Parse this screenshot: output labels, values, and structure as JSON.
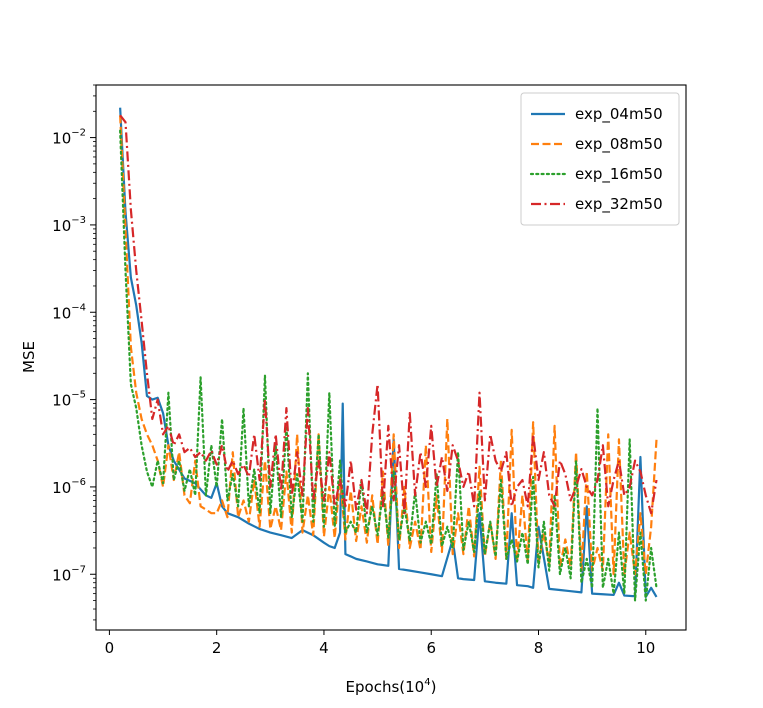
{
  "chart_data": {
    "type": "line",
    "title": "",
    "xlabel": "Epochs(10",
    "xlabel_superscript": "4",
    "xlabel_suffix": ")",
    "ylabel": "MSE",
    "yscale": "log",
    "xlim": [
      -0.25,
      10.75
    ],
    "ylim": [
      2.3e-08,
      0.04
    ],
    "x_ticks": [
      0,
      2,
      4,
      6,
      8,
      10
    ],
    "x_tick_labels": [
      "0",
      "2",
      "4",
      "6",
      "8",
      "10"
    ],
    "y_ticks": [
      1e-07,
      1e-06,
      1e-05,
      0.0001,
      0.001,
      0.01
    ],
    "y_tick_labels": [
      {
        "base": "10",
        "exp": "−7"
      },
      {
        "base": "10",
        "exp": "−6"
      },
      {
        "base": "10",
        "exp": "−5"
      },
      {
        "base": "10",
        "exp": "−4"
      },
      {
        "base": "10",
        "exp": "−3"
      },
      {
        "base": "10",
        "exp": "−2"
      }
    ],
    "grid": false,
    "legend_position": "top-right",
    "series": [
      {
        "name": "exp_04m50",
        "color": "#1f77b4",
        "dash": "solid",
        "x": [
          0.2,
          0.3,
          0.4,
          0.5,
          0.6,
          0.7,
          0.8,
          0.9,
          1.0,
          1.1,
          1.2,
          1.4,
          1.6,
          1.8,
          1.9,
          2.0,
          2.1,
          2.2,
          2.4,
          2.6,
          2.8,
          3.0,
          3.2,
          3.4,
          3.6,
          3.8,
          4.0,
          4.1,
          4.2,
          4.3,
          4.35,
          4.4,
          4.5,
          4.6,
          4.8,
          5.0,
          5.2,
          5.3,
          5.4,
          5.6,
          5.8,
          6.0,
          6.2,
          6.4,
          6.5,
          6.6,
          6.8,
          6.9,
          7.0,
          7.2,
          7.4,
          7.5,
          7.6,
          7.8,
          7.9,
          8.0,
          8.2,
          8.4,
          8.6,
          8.8,
          8.9,
          9.0,
          9.2,
          9.4,
          9.5,
          9.6,
          9.8,
          9.9,
          10.0,
          10.1,
          10.2
        ],
        "y": [
          0.022,
          0.0014,
          0.00025,
          0.00012,
          4.5e-05,
          1.1e-05,
          1e-05,
          1.05e-05,
          7e-06,
          3e-06,
          2e-06,
          1.25e-06,
          1.1e-06,
          8e-07,
          7.5e-07,
          1.1e-06,
          6e-07,
          5e-07,
          4.5e-07,
          3.8e-07,
          3.3e-07,
          3e-07,
          2.8e-07,
          2.6e-07,
          3.2e-07,
          2.8e-07,
          2.3e-07,
          2.1e-07,
          2e-07,
          3e-07,
          9e-06,
          1.7e-07,
          1.6e-07,
          1.5e-07,
          1.4e-07,
          1.3e-07,
          1.25e-07,
          3.5e-06,
          1.15e-07,
          1.1e-07,
          1.05e-07,
          1e-07,
          9.5e-08,
          2.5e-07,
          9e-08,
          8.8e-08,
          8.6e-08,
          5e-07,
          8.3e-08,
          8e-08,
          7.8e-08,
          5e-07,
          7.5e-08,
          7.3e-08,
          7e-08,
          3.5e-07,
          6.8e-08,
          6.6e-08,
          6.4e-08,
          6.2e-08,
          6e-07,
          6e-08,
          5.9e-08,
          5.8e-08,
          8e-08,
          5.7e-08,
          5.6e-08,
          2.2e-06,
          5.5e-08,
          7e-08,
          5.5e-08
        ]
      },
      {
        "name": "exp_08m50",
        "color": "#ff7f0e",
        "dash": "dashed",
        "x": [
          0.2,
          0.3,
          0.4,
          0.5,
          0.6,
          0.7,
          0.8,
          0.9,
          1.0,
          1.1,
          1.2,
          1.3,
          1.4,
          1.5,
          1.6,
          1.7,
          1.8,
          1.9,
          2.0,
          2.1,
          2.2,
          2.3,
          2.4,
          2.5,
          2.6,
          2.7,
          2.8,
          2.9,
          3.0,
          3.1,
          3.2,
          3.3,
          3.4,
          3.5,
          3.6,
          3.7,
          3.8,
          3.9,
          4.0,
          4.1,
          4.2,
          4.3,
          4.4,
          4.5,
          4.6,
          4.7,
          4.8,
          4.9,
          5.0,
          5.1,
          5.2,
          5.3,
          5.4,
          5.5,
          5.6,
          5.7,
          5.8,
          5.9,
          6.0,
          6.1,
          6.2,
          6.3,
          6.4,
          6.5,
          6.6,
          6.7,
          6.8,
          6.9,
          7.0,
          7.1,
          7.2,
          7.3,
          7.4,
          7.5,
          7.6,
          7.7,
          7.8,
          7.9,
          8.0,
          8.1,
          8.2,
          8.3,
          8.4,
          8.5,
          8.6,
          8.7,
          8.8,
          8.9,
          9.0,
          9.1,
          9.2,
          9.3,
          9.4,
          9.5,
          9.6,
          9.7,
          9.8,
          9.9,
          10.0,
          10.1,
          10.2
        ],
        "y": [
          0.018,
          0.0009,
          4e-05,
          1.2e-05,
          6e-06,
          4e-06,
          3e-06,
          2e-06,
          1e-06,
          3e-06,
          1.2e-06,
          2.5e-06,
          8e-07,
          6.5e-07,
          2e-06,
          6e-07,
          5.5e-07,
          5e-07,
          5e-07,
          7e-07,
          4.5e-07,
          2.5e-06,
          4.5e-07,
          7e-07,
          4e-07,
          1.2e-06,
          3.5e-07,
          2e-06,
          3.3e-07,
          6e-07,
          3.2e-07,
          1.5e-06,
          3e-07,
          4e-06,
          3e-07,
          8e-07,
          2.8e-07,
          4e-06,
          2.7e-07,
          1e-06,
          2.6e-07,
          1.3e-06,
          2.5e-07,
          9e-07,
          2.4e-07,
          6e-07,
          2.3e-07,
          8e-07,
          2.2e-07,
          1.5e-06,
          2.1e-07,
          4e-06,
          2e-07,
          1e-06,
          2e-07,
          4e-07,
          1.9e-07,
          3e-06,
          1.8e-07,
          8e-07,
          1.8e-07,
          6e-06,
          1.7e-07,
          5e-07,
          1.7e-07,
          6e-07,
          1.6e-07,
          1.7e-06,
          1.6e-07,
          4e-07,
          1.5e-07,
          2e-06,
          1.5e-07,
          4.5e-06,
          1.4e-07,
          8e-07,
          1.4e-07,
          5.5e-06,
          1.3e-07,
          3e-07,
          1.3e-07,
          5e-06,
          1.2e-07,
          2.5e-07,
          1.2e-07,
          2.5e-06,
          1.1e-07,
          1.5e-06,
          1.1e-07,
          2e-07,
          1.1e-07,
          4e-06,
          1e-07,
          3.5e-06,
          1e-07,
          3e-07,
          1e-07,
          5e-07,
          1e-07,
          3.5e-07,
          3.5e-06
        ]
      },
      {
        "name": "exp_16m50",
        "color": "#2ca02c",
        "dash": "dotted",
        "x": [
          0.2,
          0.3,
          0.4,
          0.5,
          0.6,
          0.7,
          0.8,
          0.9,
          1.0,
          1.1,
          1.2,
          1.3,
          1.4,
          1.5,
          1.6,
          1.7,
          1.8,
          1.9,
          2.0,
          2.1,
          2.2,
          2.3,
          2.4,
          2.5,
          2.6,
          2.7,
          2.8,
          2.9,
          3.0,
          3.1,
          3.2,
          3.3,
          3.4,
          3.5,
          3.6,
          3.7,
          3.8,
          3.9,
          4.0,
          4.1,
          4.2,
          4.3,
          4.4,
          4.5,
          4.6,
          4.7,
          4.8,
          4.9,
          5.0,
          5.1,
          5.2,
          5.3,
          5.4,
          5.5,
          5.6,
          5.7,
          5.8,
          5.9,
          6.0,
          6.1,
          6.2,
          6.3,
          6.4,
          6.5,
          6.6,
          6.7,
          6.8,
          6.9,
          7.0,
          7.1,
          7.2,
          7.3,
          7.4,
          7.5,
          7.6,
          7.7,
          7.8,
          7.9,
          8.0,
          8.1,
          8.2,
          8.3,
          8.4,
          8.5,
          8.6,
          8.7,
          8.8,
          8.9,
          9.0,
          9.1,
          9.2,
          9.3,
          9.4,
          9.5,
          9.6,
          9.7,
          9.8,
          9.9,
          10.0,
          10.1,
          10.2
        ],
        "y": [
          0.012,
          0.0003,
          1.5e-05,
          8e-06,
          3e-06,
          1.5e-06,
          1e-06,
          2e-06,
          1.1e-06,
          1.2e-05,
          1.2e-06,
          2e-06,
          9e-07,
          1.6e-06,
          8e-07,
          1.8e-05,
          8e-07,
          3e-06,
          1e-06,
          6e-06,
          7e-07,
          1.4e-06,
          6e-07,
          8e-06,
          6e-07,
          1.6e-06,
          5e-07,
          1.9e-05,
          5e-07,
          3e-06,
          4.5e-07,
          5e-06,
          4.5e-07,
          1.4e-06,
          4e-07,
          2e-05,
          4e-07,
          4e-06,
          3.5e-07,
          1.2e-05,
          3.5e-07,
          2e-06,
          3e-07,
          4e-07,
          3e-07,
          1.2e-06,
          3e-07,
          6e-07,
          2.8e-07,
          9e-07,
          2.6e-07,
          1.5e-06,
          2.5e-07,
          6e-07,
          2.4e-07,
          9e-07,
          2.3e-07,
          4e-07,
          2.2e-07,
          1.4e-06,
          2.1e-07,
          3.5e-07,
          2e-07,
          2.5e-06,
          1.9e-07,
          4e-07,
          1.8e-07,
          9e-07,
          1.7e-07,
          4e-07,
          1.6e-07,
          1.2e-06,
          1.5e-07,
          2.5e-07,
          1.4e-07,
          3e-07,
          1.3e-07,
          1.3e-06,
          1.2e-07,
          4e-07,
          1.1e-07,
          8e-07,
          1e-07,
          2e-07,
          9e-08,
          2e-06,
          8e-08,
          1.5e-07,
          7e-08,
          8e-06,
          7e-08,
          1.5e-07,
          6e-08,
          3e-07,
          6e-08,
          3.5e-06,
          5e-08,
          3e-07,
          5e-08,
          2e-07,
          7e-08
        ]
      },
      {
        "name": "exp_32m50",
        "color": "#d62728",
        "dash": "dashdot",
        "x": [
          0.2,
          0.3,
          0.4,
          0.5,
          0.6,
          0.7,
          0.8,
          0.9,
          1.0,
          1.1,
          1.2,
          1.3,
          1.4,
          1.5,
          1.6,
          1.7,
          1.8,
          1.9,
          2.0,
          2.1,
          2.2,
          2.3,
          2.4,
          2.5,
          2.6,
          2.7,
          2.8,
          2.9,
          3.0,
          3.1,
          3.2,
          3.3,
          3.4,
          3.5,
          3.6,
          3.7,
          3.8,
          3.9,
          4.0,
          4.1,
          4.2,
          4.3,
          4.4,
          4.5,
          4.6,
          4.7,
          4.8,
          4.9,
          5.0,
          5.1,
          5.2,
          5.3,
          5.4,
          5.5,
          5.6,
          5.7,
          5.8,
          5.9,
          6.0,
          6.1,
          6.2,
          6.3,
          6.4,
          6.5,
          6.6,
          6.7,
          6.8,
          6.9,
          7.0,
          7.1,
          7.2,
          7.3,
          7.4,
          7.5,
          7.6,
          7.7,
          7.8,
          7.9,
          8.0,
          8.1,
          8.2,
          8.3,
          8.4,
          8.5,
          8.6,
          8.7,
          8.8,
          8.9,
          9.0,
          9.1,
          9.2,
          9.3,
          9.4,
          9.5,
          9.6,
          9.7,
          9.8,
          9.9,
          10.0,
          10.1,
          10.2
        ],
        "y": [
          0.018,
          0.015,
          0.0015,
          0.0003,
          8e-05,
          2e-05,
          6e-06,
          1e-05,
          4e-06,
          5e-06,
          3e-06,
          4e-06,
          2.5e-06,
          2.8e-06,
          2.2e-06,
          2.5e-06,
          2e-06,
          2.6e-06,
          1.8e-06,
          3e-06,
          1.5e-06,
          2e-06,
          1.4e-06,
          1.8e-06,
          1.3e-06,
          4e-06,
          1.2e-06,
          1e-05,
          1e-06,
          4e-06,
          9e-07,
          8e-06,
          8e-07,
          2.5e-06,
          8e-07,
          8e-06,
          7e-07,
          2e-06,
          7e-07,
          2.5e-06,
          6e-07,
          1.2e-06,
          6e-07,
          2e-06,
          5.5e-07,
          1.2e-06,
          5e-07,
          4e-06,
          1.5e-05,
          6e-07,
          5e-06,
          7e-07,
          3e-06,
          5e-07,
          7e-06,
          8e-07,
          2.5e-06,
          1e-06,
          5e-06,
          1e-06,
          2.2e-06,
          9e-07,
          3e-06,
          2e-06,
          1e-06,
          1.5e-06,
          6e-07,
          1.2e-05,
          7e-07,
          4e-06,
          2e-06,
          1.5e-06,
          2.5e-06,
          6e-07,
          1e-06,
          1.2e-06,
          6e-07,
          4e-06,
          1.2e-06,
          2.5e-06,
          8e-07,
          6e-07,
          2e-06,
          1.4e-06,
          7e-07,
          1e-06,
          1.6e-06,
          1e-06,
          8e-07,
          1.2e-06,
          3e-06,
          6e-07,
          1.2e-06,
          2e-06,
          8e-07,
          1e-06,
          2e-06,
          1.5e-06,
          8e-07,
          5e-07,
          1.2e-06
        ]
      }
    ]
  }
}
